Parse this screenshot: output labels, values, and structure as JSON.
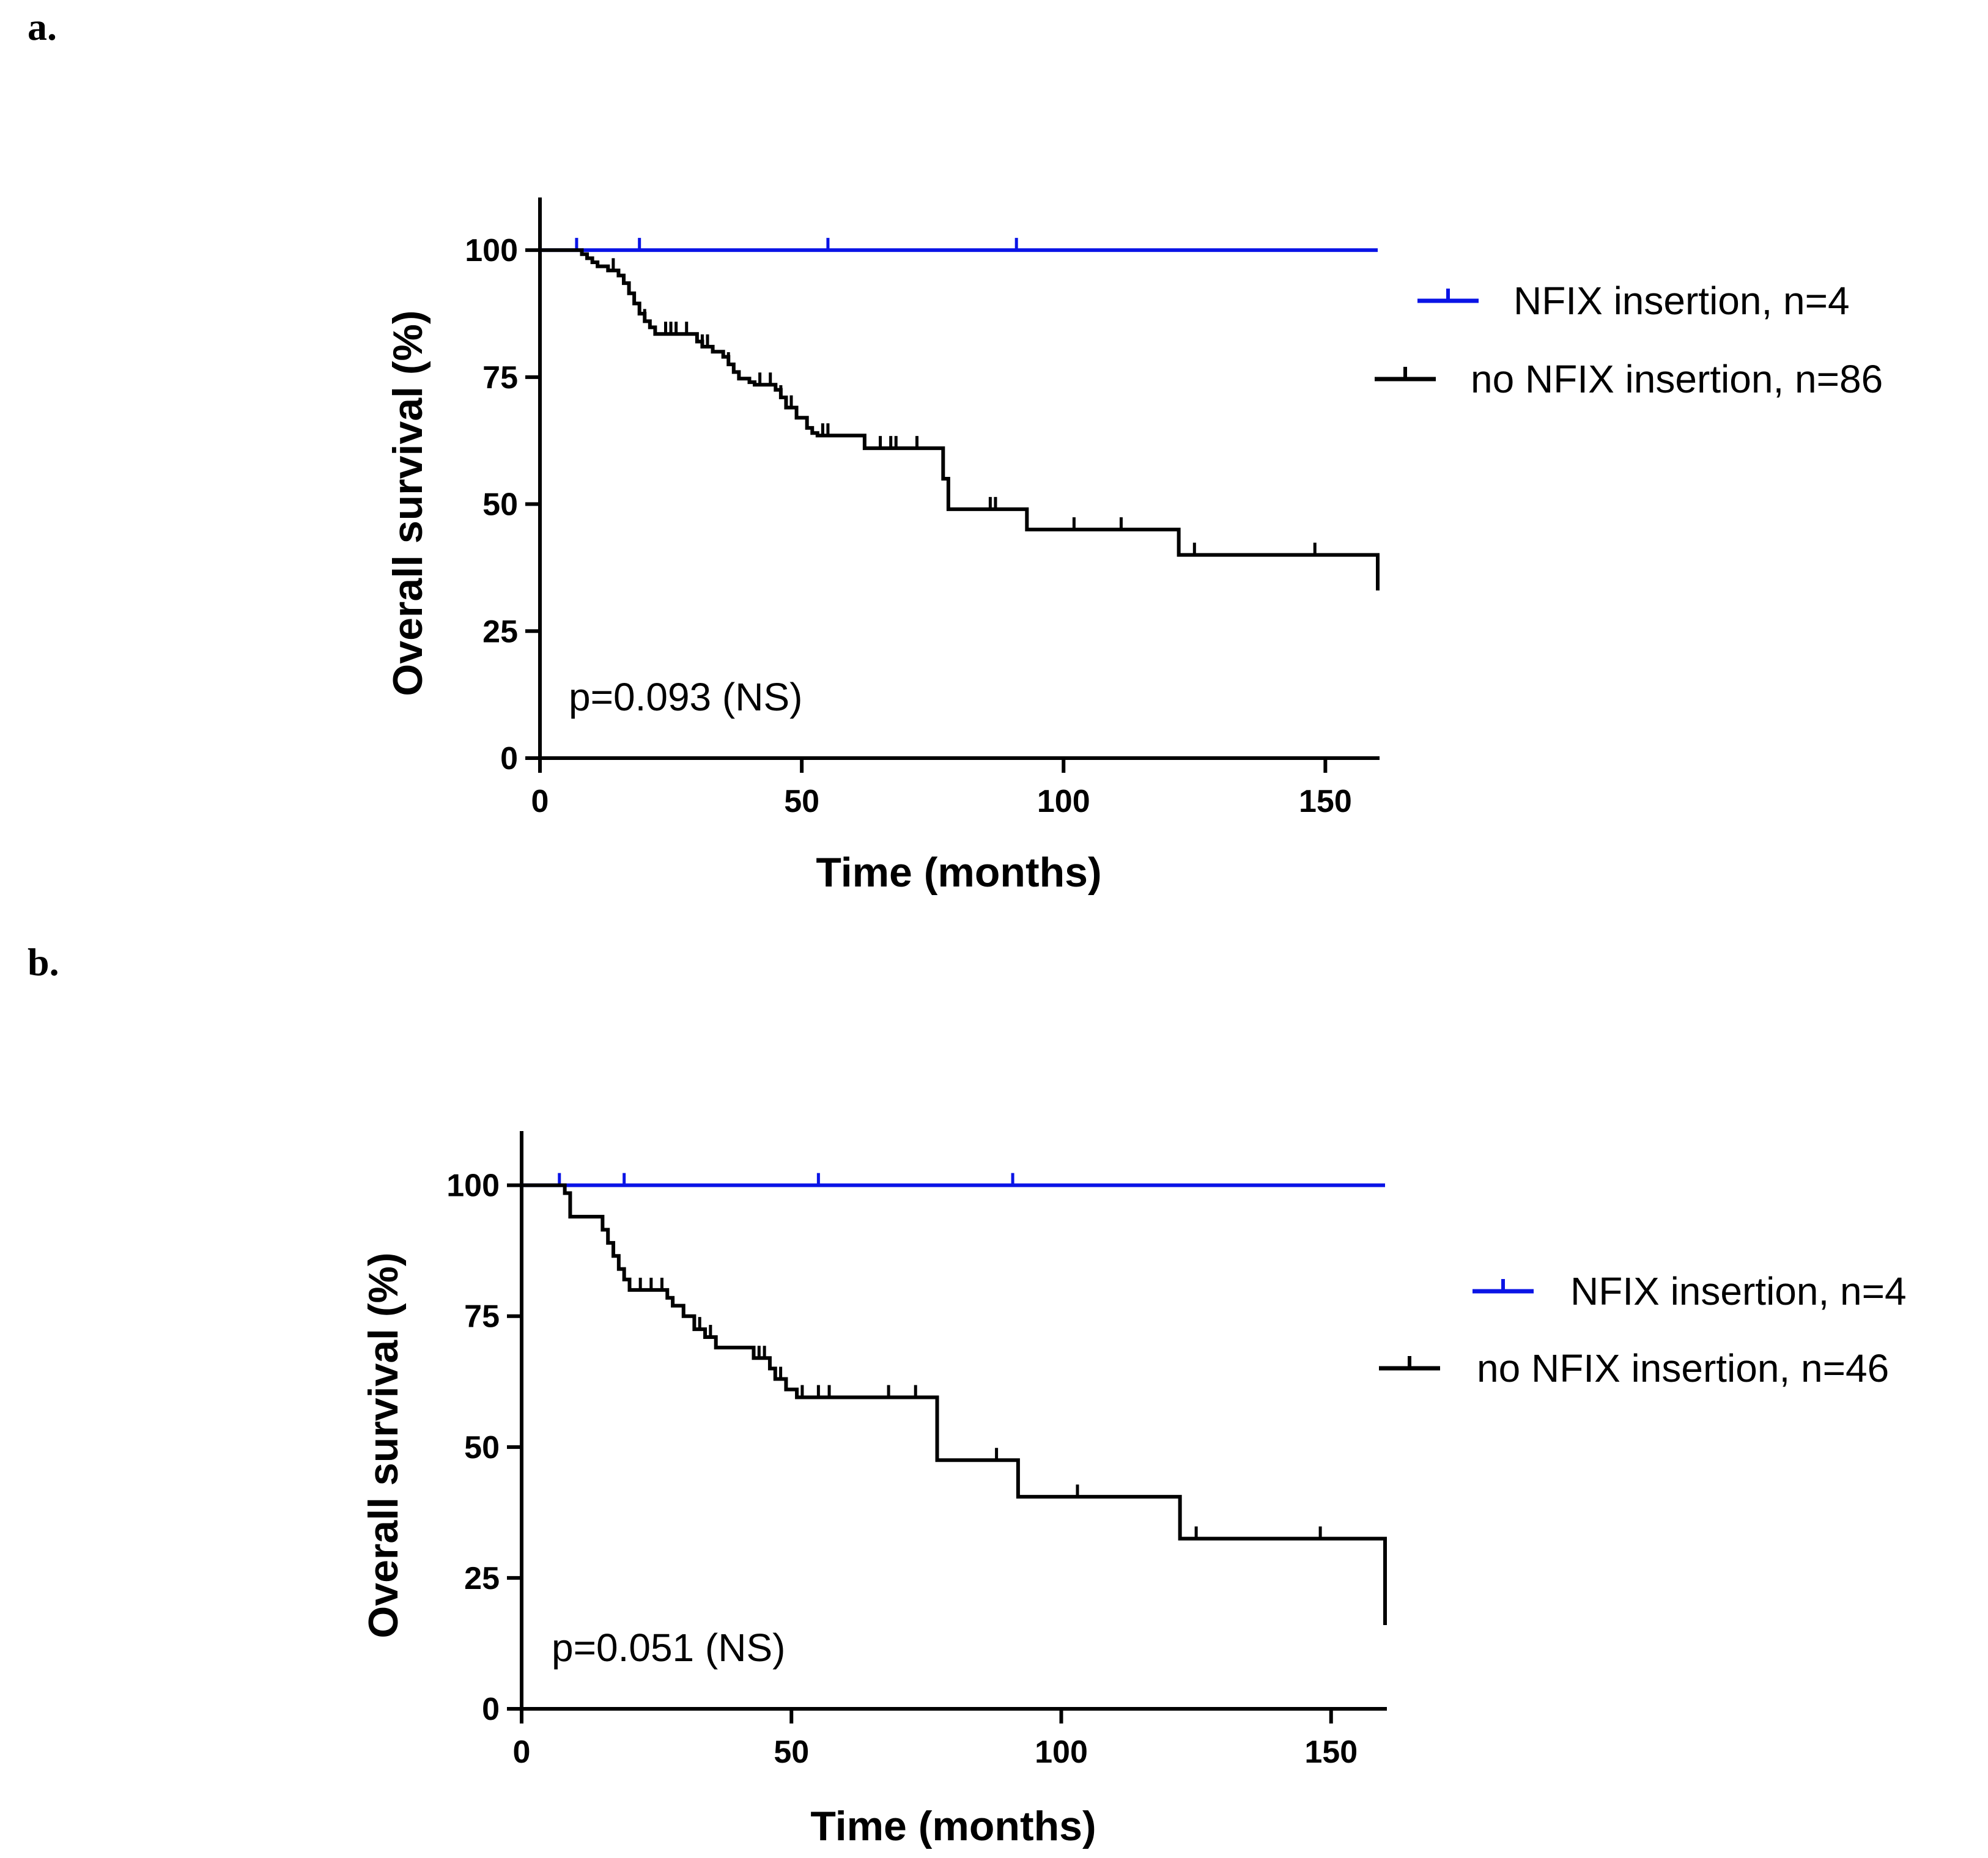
{
  "figure": {
    "panel_labels": [
      "a.",
      "b."
    ]
  },
  "chart_data": [
    {
      "type": "line",
      "chart_kind": "kaplan-meier",
      "panel": "a.",
      "xlabel": "Time (months)",
      "ylabel": "Overall survival (%)",
      "xlim": [
        0,
        160
      ],
      "ylim": [
        0,
        110
      ],
      "xticks": [
        0,
        50,
        100,
        150
      ],
      "yticks": [
        0,
        25,
        50,
        75,
        100
      ],
      "annotation": "p=0.093 (NS)",
      "legend_position": "right",
      "series": [
        {
          "name": "NFIX insertion, n=4",
          "color": "#0a14e6",
          "x": [
            0,
            160
          ],
          "y": [
            100,
            100
          ],
          "censored_x": [
            7,
            19,
            55,
            91
          ]
        },
        {
          "name": "no NFIX insertion, n=86",
          "color": "#000000",
          "x": [
            0,
            7,
            8,
            9,
            10,
            11,
            13,
            15,
            16,
            17,
            18,
            19,
            20,
            21,
            22,
            30,
            31,
            33,
            35,
            36,
            37,
            38,
            40,
            41,
            45,
            46,
            47,
            49,
            51,
            52,
            53,
            62,
            77,
            78,
            79,
            93,
            122,
            160
          ],
          "y": [
            100,
            100,
            99.2,
            98.4,
            97.6,
            96.8,
            96.0,
            95.0,
            93.5,
            91.5,
            89.5,
            87.5,
            86.0,
            84.8,
            83.5,
            82.0,
            81.0,
            80.0,
            79.0,
            77.5,
            76.0,
            74.7,
            74.0,
            73.5,
            72.5,
            71.0,
            69.0,
            67.0,
            65.0,
            64.0,
            63.5,
            61.0,
            55.0,
            49.0,
            49.0,
            45.0,
            40.0,
            33.0
          ],
          "censored_x": [
            14,
            20,
            24,
            25,
            26,
            28,
            31,
            32,
            36,
            42,
            44,
            46,
            48,
            54,
            55,
            65,
            67,
            68,
            72,
            86,
            87,
            102,
            111,
            125,
            148
          ]
        }
      ]
    },
    {
      "type": "line",
      "chart_kind": "kaplan-meier",
      "panel": "b.",
      "xlabel": "Time (months)",
      "ylabel": "Overall survival (%)",
      "xlim": [
        0,
        160
      ],
      "ylim": [
        0,
        110
      ],
      "xticks": [
        0,
        50,
        100,
        150
      ],
      "yticks": [
        0,
        25,
        50,
        75,
        100
      ],
      "annotation": "p=0.051 (NS)",
      "legend_position": "right",
      "series": [
        {
          "name": "NFIX insertion, n=4",
          "color": "#0a14e6",
          "x": [
            0,
            160
          ],
          "y": [
            100,
            100
          ],
          "censored_x": [
            7,
            19,
            55,
            91
          ]
        },
        {
          "name": "no NFIX insertion, n=46",
          "color": "#000000",
          "x": [
            0,
            7,
            8,
            9,
            15,
            16,
            17,
            18,
            19,
            20,
            27,
            28,
            30,
            32,
            34,
            36,
            43,
            46,
            47,
            49,
            51,
            77,
            92,
            122,
            160
          ],
          "y": [
            100,
            100,
            98.5,
            94.0,
            91.5,
            89.0,
            86.5,
            84.0,
            82.0,
            80.0,
            78.5,
            77.0,
            75.0,
            72.5,
            71.0,
            69.0,
            67.0,
            65.0,
            63.0,
            61.0,
            59.5,
            47.5,
            40.5,
            32.5,
            16.0
          ],
          "censored_x": [
            22,
            24,
            26,
            33,
            35,
            44,
            45,
            48,
            52,
            55,
            57,
            68,
            73,
            88,
            103,
            125,
            148
          ]
        }
      ]
    }
  ]
}
